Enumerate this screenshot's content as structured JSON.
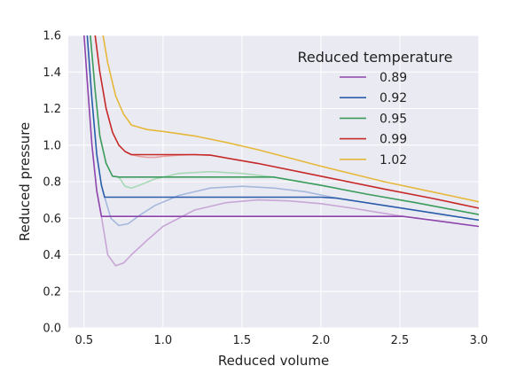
{
  "chart_data": {
    "type": "line",
    "xlabel": "Reduced volume",
    "ylabel": "Reduced pressure",
    "xlim": [
      0.4,
      3.0
    ],
    "ylim": [
      0.0,
      1.6
    ],
    "xticks": [
      0.5,
      1.0,
      1.5,
      2.0,
      2.5,
      3.0
    ],
    "xtick_labels": [
      "0.5",
      "1.0",
      "1.5",
      "2.0",
      "2.5",
      "3.0"
    ],
    "yticks": [
      0.0,
      0.2,
      0.4,
      0.6,
      0.8,
      1.0,
      1.2,
      1.4,
      1.6
    ],
    "ytick_labels": [
      "0.0",
      "0.2",
      "0.4",
      "0.6",
      "0.8",
      "1.0",
      "1.2",
      "1.4",
      "1.6"
    ],
    "grid": true,
    "background": "#eaeaf2",
    "legend": {
      "title": "Reduced temperature",
      "position": "top-right"
    },
    "series": [
      {
        "name": "0.89",
        "color": "#8e44ad",
        "x": [
          0.5,
          0.52,
          0.55,
          0.58,
          0.61,
          0.7,
          1.0,
          1.5,
          2.0,
          2.52,
          2.7,
          3.0
        ],
        "y": [
          1.6,
          1.35,
          1.0,
          0.75,
          0.61,
          0.61,
          0.61,
          0.61,
          0.61,
          0.61,
          0.59,
          0.555
        ]
      },
      {
        "name": "0.92",
        "color": "#2a5caa",
        "x": [
          0.52,
          0.55,
          0.58,
          0.61,
          0.63,
          0.8,
          1.2,
          1.6,
          2.0,
          2.1,
          2.4,
          2.7,
          3.0
        ],
        "y": [
          1.6,
          1.25,
          0.95,
          0.78,
          0.715,
          0.715,
          0.715,
          0.715,
          0.715,
          0.71,
          0.67,
          0.63,
          0.59
        ]
      },
      {
        "name": "0.95",
        "color": "#3a9b5a",
        "x": [
          0.54,
          0.57,
          0.6,
          0.64,
          0.68,
          0.72,
          1.0,
          1.4,
          1.7,
          2.0,
          2.3,
          2.6,
          3.0
        ],
        "y": [
          1.6,
          1.3,
          1.05,
          0.9,
          0.83,
          0.825,
          0.825,
          0.825,
          0.825,
          0.78,
          0.73,
          0.685,
          0.62
        ]
      },
      {
        "name": "0.99",
        "color": "#c62828",
        "x": [
          0.57,
          0.6,
          0.64,
          0.68,
          0.72,
          0.76,
          0.8,
          1.0,
          1.2,
          1.3,
          1.6,
          2.0,
          2.4,
          2.7,
          3.0
        ],
        "y": [
          1.6,
          1.4,
          1.2,
          1.07,
          1.0,
          0.965,
          0.948,
          0.948,
          0.948,
          0.945,
          0.9,
          0.83,
          0.76,
          0.71,
          0.655
        ]
      },
      {
        "name": "1.02",
        "color": "#e6b83a",
        "x": [
          0.62,
          0.65,
          0.7,
          0.75,
          0.8,
          0.9,
          1.0,
          1.2,
          1.4,
          1.6,
          2.0,
          2.4,
          2.7,
          3.0
        ],
        "y": [
          1.6,
          1.45,
          1.27,
          1.17,
          1.11,
          1.085,
          1.075,
          1.05,
          1.015,
          0.975,
          0.885,
          0.8,
          0.745,
          0.69
        ]
      }
    ],
    "faint_series": [
      {
        "color": "#c8a6d6",
        "x": [
          0.61,
          0.65,
          0.7,
          0.75,
          0.8,
          0.9,
          1.0,
          1.2,
          1.4,
          1.6,
          1.8,
          2.0,
          2.2,
          2.52
        ],
        "y": [
          0.61,
          0.4,
          0.34,
          0.355,
          0.4,
          0.48,
          0.555,
          0.645,
          0.685,
          0.7,
          0.695,
          0.68,
          0.655,
          0.61
        ]
      },
      {
        "color": "#a6b8dc",
        "x": [
          0.63,
          0.67,
          0.72,
          0.78,
          0.85,
          0.95,
          1.1,
          1.3,
          1.5,
          1.7,
          1.9,
          2.1
        ],
        "y": [
          0.715,
          0.6,
          0.56,
          0.57,
          0.615,
          0.67,
          0.725,
          0.765,
          0.775,
          0.765,
          0.745,
          0.71
        ]
      },
      {
        "color": "#a9d9b7",
        "x": [
          0.72,
          0.76,
          0.8,
          0.85,
          0.95,
          1.1,
          1.3,
          1.5,
          1.7
        ],
        "y": [
          0.825,
          0.775,
          0.765,
          0.78,
          0.815,
          0.845,
          0.855,
          0.845,
          0.825
        ]
      },
      {
        "color": "#e7a0a0",
        "x": [
          0.8,
          0.85,
          0.9,
          0.95,
          1.0,
          1.1,
          1.2,
          1.3
        ],
        "y": [
          0.948,
          0.938,
          0.933,
          0.933,
          0.938,
          0.945,
          0.948,
          0.945
        ]
      }
    ]
  }
}
